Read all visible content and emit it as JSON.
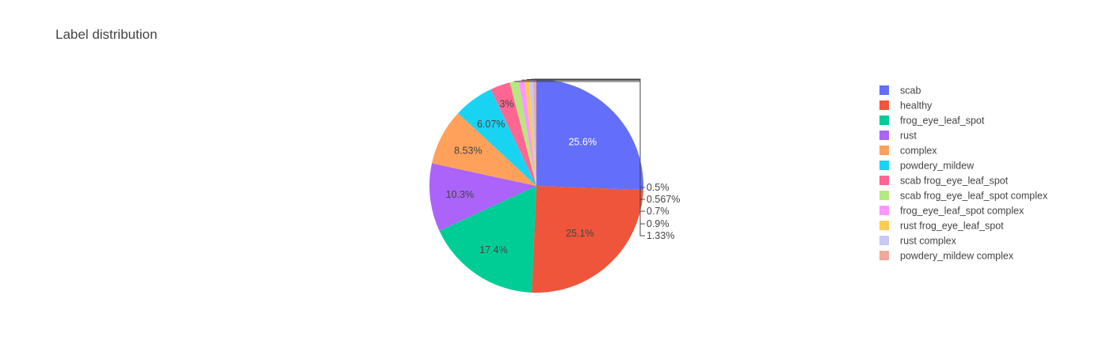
{
  "chart_data": {
    "type": "pie",
    "title": "Label distribution",
    "direction": "clockwise",
    "legend_position": "right",
    "categories": [
      "scab",
      "healthy",
      "frog_eye_leaf_spot",
      "rust",
      "complex",
      "powdery_mildew",
      "scab frog_eye_leaf_spot",
      "scab frog_eye_leaf_spot complex",
      "frog_eye_leaf_spot complex",
      "rust frog_eye_leaf_spot",
      "rust complex",
      "powdery_mildew complex"
    ],
    "values": [
      25.6,
      25.1,
      17.4,
      10.3,
      8.53,
      6.07,
      3,
      1.33,
      0.9,
      0.7,
      0.567,
      0.5
    ],
    "labels": [
      "25.6%",
      "25.1%",
      "17.4%",
      "10.3%",
      "8.53%",
      "6.07%",
      "3%",
      "1.33%",
      "0.9%",
      "0.7%",
      "0.567%",
      "0.5%"
    ],
    "colors": [
      "#636efa",
      "#ef553b",
      "#00cc96",
      "#ab63fa",
      "#ffa15a",
      "#19d3f3",
      "#ff6692",
      "#b6e880",
      "#ff97ff",
      "#fecb52",
      "#c8c8f6",
      "#f0a89a"
    ]
  }
}
